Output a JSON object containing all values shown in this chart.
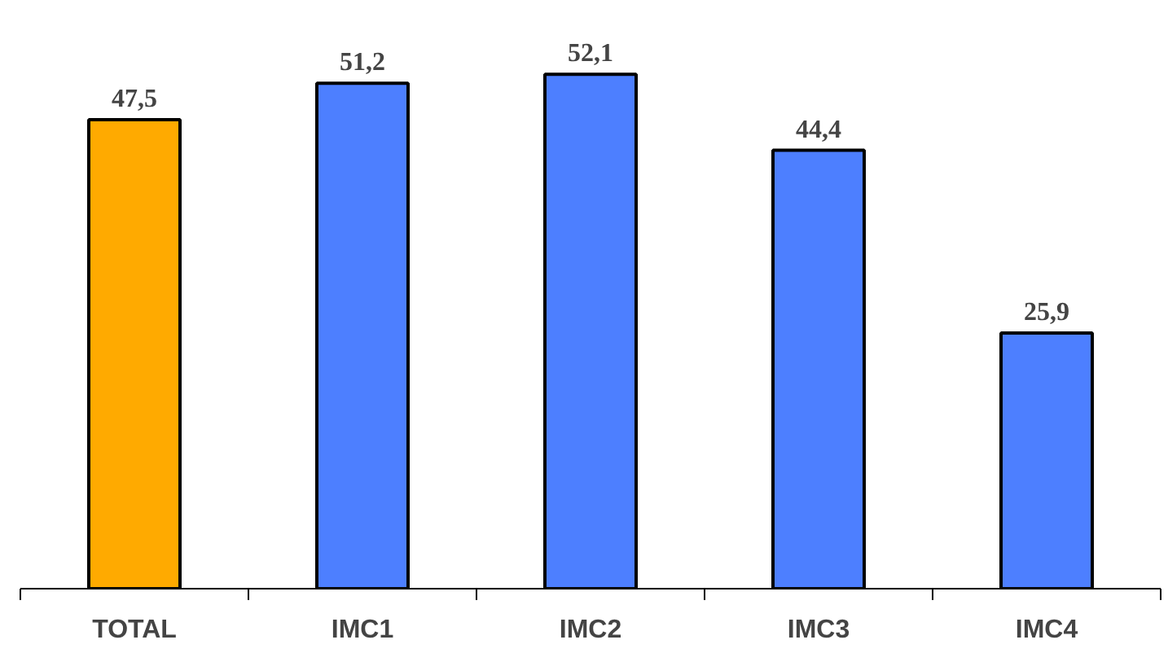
{
  "chart_data": {
    "type": "bar",
    "relative": false,
    "categories": [
      "TOTAL",
      "IMC1",
      "IMC2",
      "IMC3",
      "IMC4"
    ],
    "values": [
      47.5,
      51.2,
      52.1,
      44.4,
      25.9
    ],
    "colors": [
      "#ffaa00",
      "#4d7fff",
      "#4d7fff",
      "#4d7fff",
      "#4d7fff"
    ],
    "value_labels": [
      "47,5",
      "51,2",
      "52,1",
      "44,4",
      "25,9"
    ],
    "grid": false
  }
}
